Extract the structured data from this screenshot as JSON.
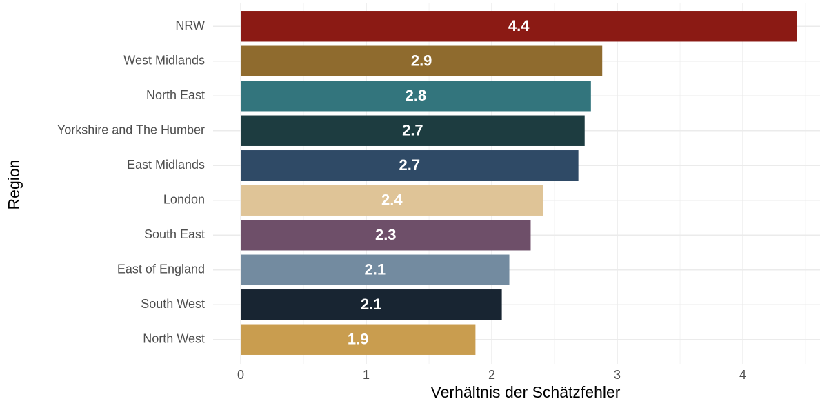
{
  "chart_data": {
    "type": "barh",
    "xlabel": "Verhältnis der Schätzfehler",
    "ylabel": "Region",
    "categories": [
      "NRW",
      "West Midlands",
      "North East",
      "Yorkshire and The Humber",
      "East Midlands",
      "London",
      "South East",
      "East of England",
      "South West",
      "North West"
    ],
    "values": [
      4.43,
      2.88,
      2.79,
      2.74,
      2.69,
      2.41,
      2.31,
      2.14,
      2.08,
      1.87
    ],
    "value_labels": [
      "4.4",
      "2.9",
      "2.8",
      "2.7",
      "2.7",
      "2.4",
      "2.3",
      "2.1",
      "2.1",
      "1.9"
    ],
    "colors": [
      "#8b1a14",
      "#8f6b2e",
      "#33757d",
      "#1d3c40",
      "#2f4a66",
      "#dfc497",
      "#6e4f69",
      "#738ba0",
      "#182532",
      "#c99d4f"
    ],
    "xlim": [
      -0.22,
      4.615
    ],
    "xticks": [
      0,
      1,
      2,
      3,
      4
    ],
    "xticks_minor": [
      0.5,
      1.5,
      2.5,
      3.5,
      4.5
    ],
    "grid": true
  }
}
